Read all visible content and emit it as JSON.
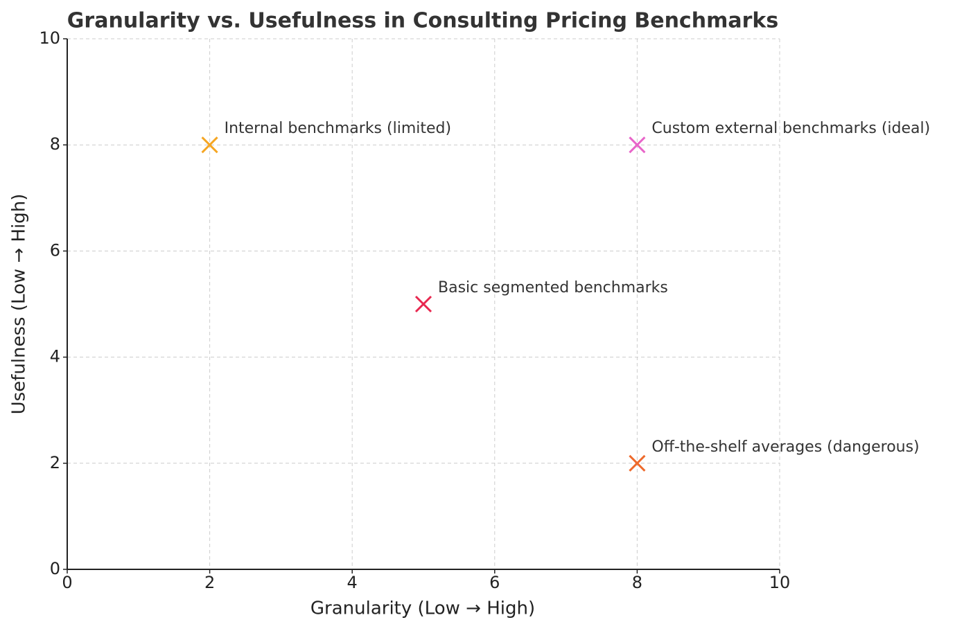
{
  "chart_data": {
    "type": "scatter",
    "title": "Granularity vs. Usefulness in Consulting Pricing Benchmarks",
    "x_label": "Granularity (Low → High)",
    "y_label": "Usefulness (Low → High)",
    "x": [
      2,
      8,
      5,
      8
    ],
    "values": [
      8,
      8,
      5,
      2
    ],
    "labels": [
      "Internal benchmarks (limited)",
      "Custom external benchmarks (ideal)",
      "Basic segmented benchmarks",
      "Off-the-shelf averages (dangerous)"
    ],
    "colors": [
      "#f5a623",
      "#e865c9",
      "#e8274f",
      "#ee6a2c"
    ],
    "xlim": [
      0,
      10
    ],
    "ylim": [
      0,
      10
    ],
    "xticks": [
      0,
      2,
      4,
      6,
      8,
      10
    ],
    "yticks": [
      0,
      2,
      4,
      6,
      8,
      10
    ],
    "grid": true
  }
}
